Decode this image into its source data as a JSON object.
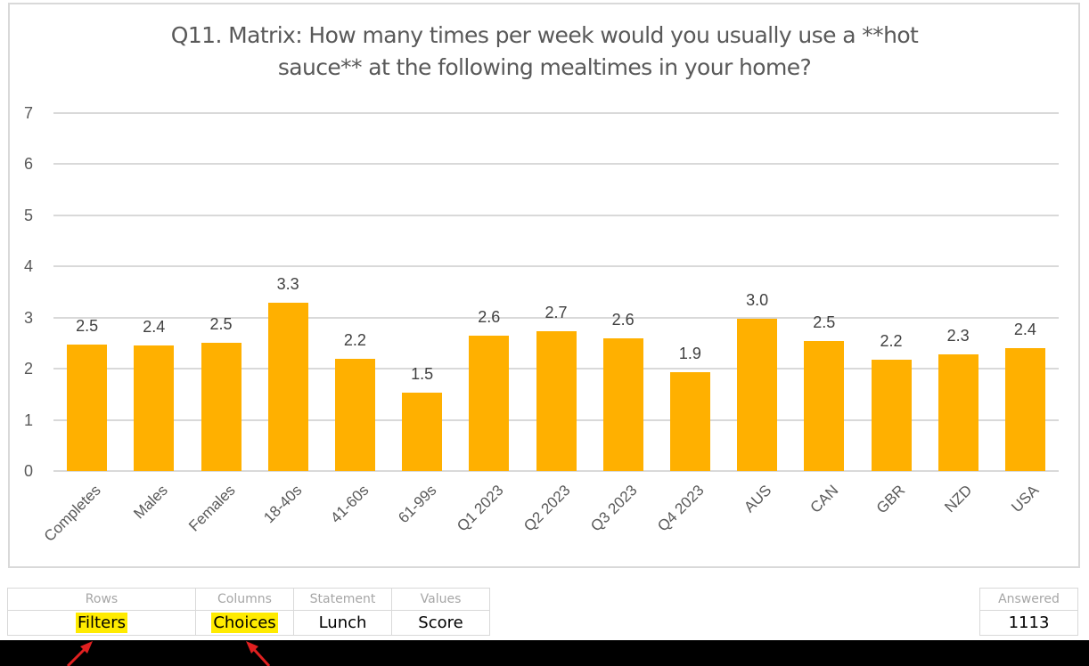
{
  "chart_data": {
    "type": "bar",
    "title": "Q11. Matrix: How many times per week would you usually use a **hot sauce** at the following mealtimes in your home?",
    "title_lines": [
      "Q11. Matrix: How many times per week would you usually use a **hot",
      "sauce** at the following mealtimes in your home?"
    ],
    "categories": [
      "Completes",
      "Males",
      "Females",
      "18-40s",
      "41-60s",
      "61-99s",
      "Q1 2023",
      "Q2 2023",
      "Q3 2023",
      "Q4 2023",
      "AUS",
      "CAN",
      "GBR",
      "NZD",
      "USA"
    ],
    "values": [
      2.47,
      2.45,
      2.5,
      3.29,
      2.19,
      1.54,
      2.64,
      2.73,
      2.59,
      1.94,
      2.98,
      2.54,
      2.17,
      2.28,
      2.4
    ],
    "data_labels": [
      "2.5",
      "2.4",
      "2.5",
      "3.3",
      "2.2",
      "1.5",
      "2.6",
      "2.7",
      "2.6",
      "1.9",
      "3.0",
      "2.5",
      "2.2",
      "2.3",
      "2.4"
    ],
    "xlabel": "",
    "ylabel": "",
    "ylim": [
      0,
      7
    ],
    "yticks": [
      "0",
      "1",
      "2",
      "3",
      "4",
      "5",
      "6",
      "7"
    ],
    "grid": true,
    "legend": null,
    "bar_color": "#FFB000"
  },
  "meta_table": {
    "headers": [
      "Rows",
      "Columns",
      "Statement",
      "Values"
    ],
    "values": [
      "Filters",
      "Choices",
      "Lunch",
      "Score"
    ],
    "highlighted": [
      true,
      true,
      false,
      false
    ],
    "highlight_color": "#FFEB00"
  },
  "answered": {
    "header": "Answered",
    "value": "1113"
  },
  "annotations": {
    "arrow_color": "#E02020"
  }
}
